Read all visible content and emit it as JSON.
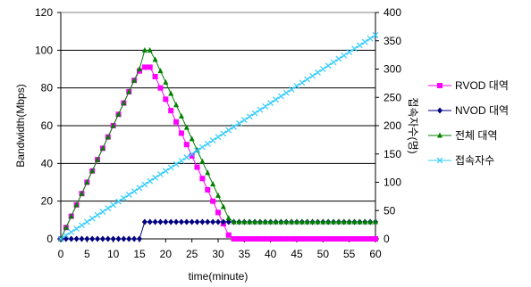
{
  "chart_data": {
    "type": "line",
    "xlabel": "time(minute)",
    "ylabel": "Bandwidth(Mbps)",
    "y2label": "접속자수(명)",
    "xlim": [
      0,
      60
    ],
    "xticks": [
      0,
      5,
      10,
      15,
      20,
      25,
      30,
      35,
      40,
      45,
      50,
      55,
      60
    ],
    "ylim": [
      0,
      120
    ],
    "yticks": [
      0,
      20,
      40,
      60,
      80,
      100,
      120
    ],
    "y2lim": [
      0,
      400
    ],
    "y2ticks": [
      0,
      50,
      100,
      150,
      200,
      250,
      300,
      350,
      400
    ],
    "grid": "horizontal",
    "legend": "right",
    "series": [
      {
        "name": "RVOD 대역",
        "axis": "left",
        "color": "#ff00ff",
        "marker": "square",
        "x": [
          0,
          1,
          2,
          3,
          4,
          5,
          6,
          7,
          8,
          9,
          10,
          11,
          12,
          13,
          14,
          15,
          16,
          17,
          18,
          19,
          20,
          21,
          22,
          23,
          24,
          25,
          26,
          27,
          28,
          29,
          30,
          31,
          32,
          33,
          34,
          35,
          36,
          37,
          38,
          39,
          40,
          41,
          42,
          43,
          44,
          45,
          46,
          47,
          48,
          49,
          50,
          51,
          52,
          53,
          54,
          55,
          56,
          57,
          58,
          59,
          60
        ],
        "values": [
          0,
          6,
          12,
          18,
          24,
          30,
          36,
          42,
          48,
          54,
          60,
          66,
          72,
          78,
          84,
          89,
          91,
          91,
          86,
          80,
          74,
          68,
          62,
          56,
          50,
          44,
          38,
          32,
          26,
          20,
          14,
          8,
          2,
          0,
          0,
          0,
          0,
          0,
          0,
          0,
          0,
          0,
          0,
          0,
          0,
          0,
          0,
          0,
          0,
          0,
          0,
          0,
          0,
          0,
          0,
          0,
          0,
          0,
          0,
          0,
          0
        ]
      },
      {
        "name": "NVOD 대역",
        "axis": "left",
        "color": "#000080",
        "marker": "diamond",
        "x": [
          0,
          1,
          2,
          3,
          4,
          5,
          6,
          7,
          8,
          9,
          10,
          11,
          12,
          13,
          14,
          15,
          16,
          17,
          18,
          19,
          20,
          21,
          22,
          23,
          24,
          25,
          26,
          27,
          28,
          29,
          30,
          31,
          32,
          33,
          34,
          35,
          36,
          37,
          38,
          39,
          40,
          41,
          42,
          43,
          44,
          45,
          46,
          47,
          48,
          49,
          50,
          51,
          52,
          53,
          54,
          55,
          56,
          57,
          58,
          59,
          60
        ],
        "values": [
          0,
          0,
          0,
          0,
          0,
          0,
          0,
          0,
          0,
          0,
          0,
          0,
          0,
          0,
          0,
          0,
          9,
          9,
          9,
          9,
          9,
          9,
          9,
          9,
          9,
          9,
          9,
          9,
          9,
          9,
          9,
          9,
          9,
          9,
          9,
          9,
          9,
          9,
          9,
          9,
          9,
          9,
          9,
          9,
          9,
          9,
          9,
          9,
          9,
          9,
          9,
          9,
          9,
          9,
          9,
          9,
          9,
          9,
          9,
          9,
          9
        ]
      },
      {
        "name": "전체 대역",
        "axis": "left",
        "color": "#008000",
        "marker": "triangle",
        "x": [
          0,
          1,
          2,
          3,
          4,
          5,
          6,
          7,
          8,
          9,
          10,
          11,
          12,
          13,
          14,
          15,
          16,
          17,
          18,
          19,
          20,
          21,
          22,
          23,
          24,
          25,
          26,
          27,
          28,
          29,
          30,
          31,
          32,
          33,
          34,
          35,
          36,
          37,
          38,
          39,
          40,
          41,
          42,
          43,
          44,
          45,
          46,
          47,
          48,
          49,
          50,
          51,
          52,
          53,
          54,
          55,
          56,
          57,
          58,
          59,
          60
        ],
        "values": [
          0,
          6,
          12,
          18,
          24,
          30,
          36,
          42,
          48,
          54,
          60,
          66,
          72,
          78,
          84,
          90,
          100,
          100,
          95,
          89,
          83,
          77,
          71,
          65,
          59,
          53,
          47,
          41,
          35,
          29,
          23,
          17,
          11,
          9,
          9,
          9,
          9,
          9,
          9,
          9,
          9,
          9,
          9,
          9,
          9,
          9,
          9,
          9,
          9,
          9,
          9,
          9,
          9,
          9,
          9,
          9,
          9,
          9,
          9,
          9,
          9
        ]
      },
      {
        "name": "접속자수",
        "axis": "right",
        "color": "#33ccff",
        "marker": "x",
        "x": [
          0,
          1,
          2,
          3,
          4,
          5,
          6,
          7,
          8,
          9,
          10,
          11,
          12,
          13,
          14,
          15,
          16,
          17,
          18,
          19,
          20,
          21,
          22,
          23,
          24,
          25,
          26,
          27,
          28,
          29,
          30,
          31,
          32,
          33,
          34,
          35,
          36,
          37,
          38,
          39,
          40,
          41,
          42,
          43,
          44,
          45,
          46,
          47,
          48,
          49,
          50,
          51,
          52,
          53,
          54,
          55,
          56,
          57,
          58,
          59,
          60
        ],
        "values": [
          0,
          6,
          12,
          18,
          24,
          30,
          36,
          42,
          48,
          54,
          60,
          66,
          72,
          78,
          84,
          90,
          96,
          102,
          108,
          114,
          120,
          126,
          132,
          138,
          144,
          150,
          156,
          162,
          168,
          174,
          180,
          186,
          192,
          198,
          204,
          210,
          216,
          222,
          228,
          234,
          240,
          246,
          252,
          258,
          264,
          270,
          276,
          282,
          288,
          294,
          300,
          306,
          312,
          318,
          324,
          330,
          336,
          342,
          348,
          354,
          360
        ]
      }
    ]
  }
}
